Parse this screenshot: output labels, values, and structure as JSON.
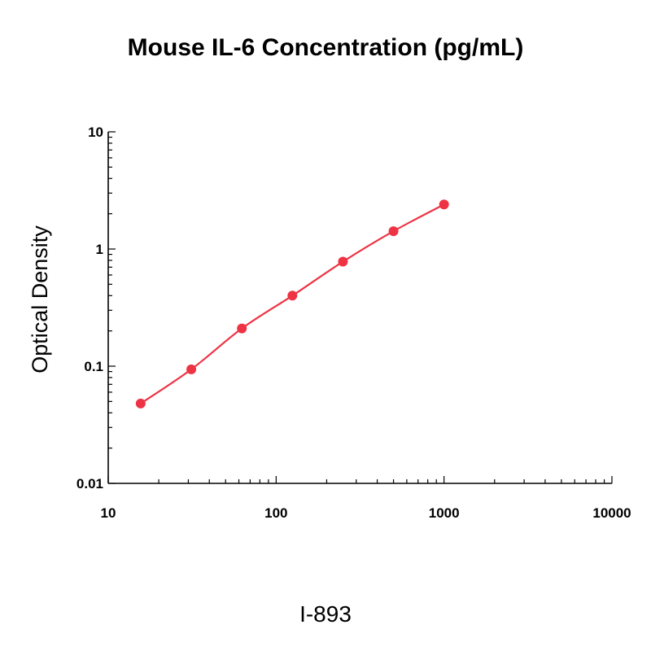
{
  "chart_data": {
    "type": "scatter",
    "title": "Mouse IL-6 Concentration (pg/mL)",
    "xlabel": "",
    "ylabel": "Optical Density",
    "x_scale": "log",
    "y_scale": "log",
    "xlim": [
      10,
      10000
    ],
    "ylim": [
      0.01,
      10
    ],
    "x_ticks": [
      10,
      100,
      1000,
      10000
    ],
    "x_tick_labels": [
      "10",
      "100",
      "1000",
      "10000"
    ],
    "y_ticks": [
      0.01,
      0.1,
      1,
      10
    ],
    "y_tick_labels": [
      "0.01",
      "0.1",
      "1",
      "10"
    ],
    "grid": false,
    "series": [
      {
        "color": "#ee3344",
        "fit_line": true,
        "points": [
          {
            "x": 15.6,
            "y": 0.048
          },
          {
            "x": 31.25,
            "y": 0.094
          },
          {
            "x": 62.5,
            "y": 0.21
          },
          {
            "x": 125,
            "y": 0.4
          },
          {
            "x": 250,
            "y": 0.78
          },
          {
            "x": 500,
            "y": 1.42
          },
          {
            "x": 1000,
            "y": 2.4
          }
        ]
      }
    ]
  },
  "caption": "I-893"
}
